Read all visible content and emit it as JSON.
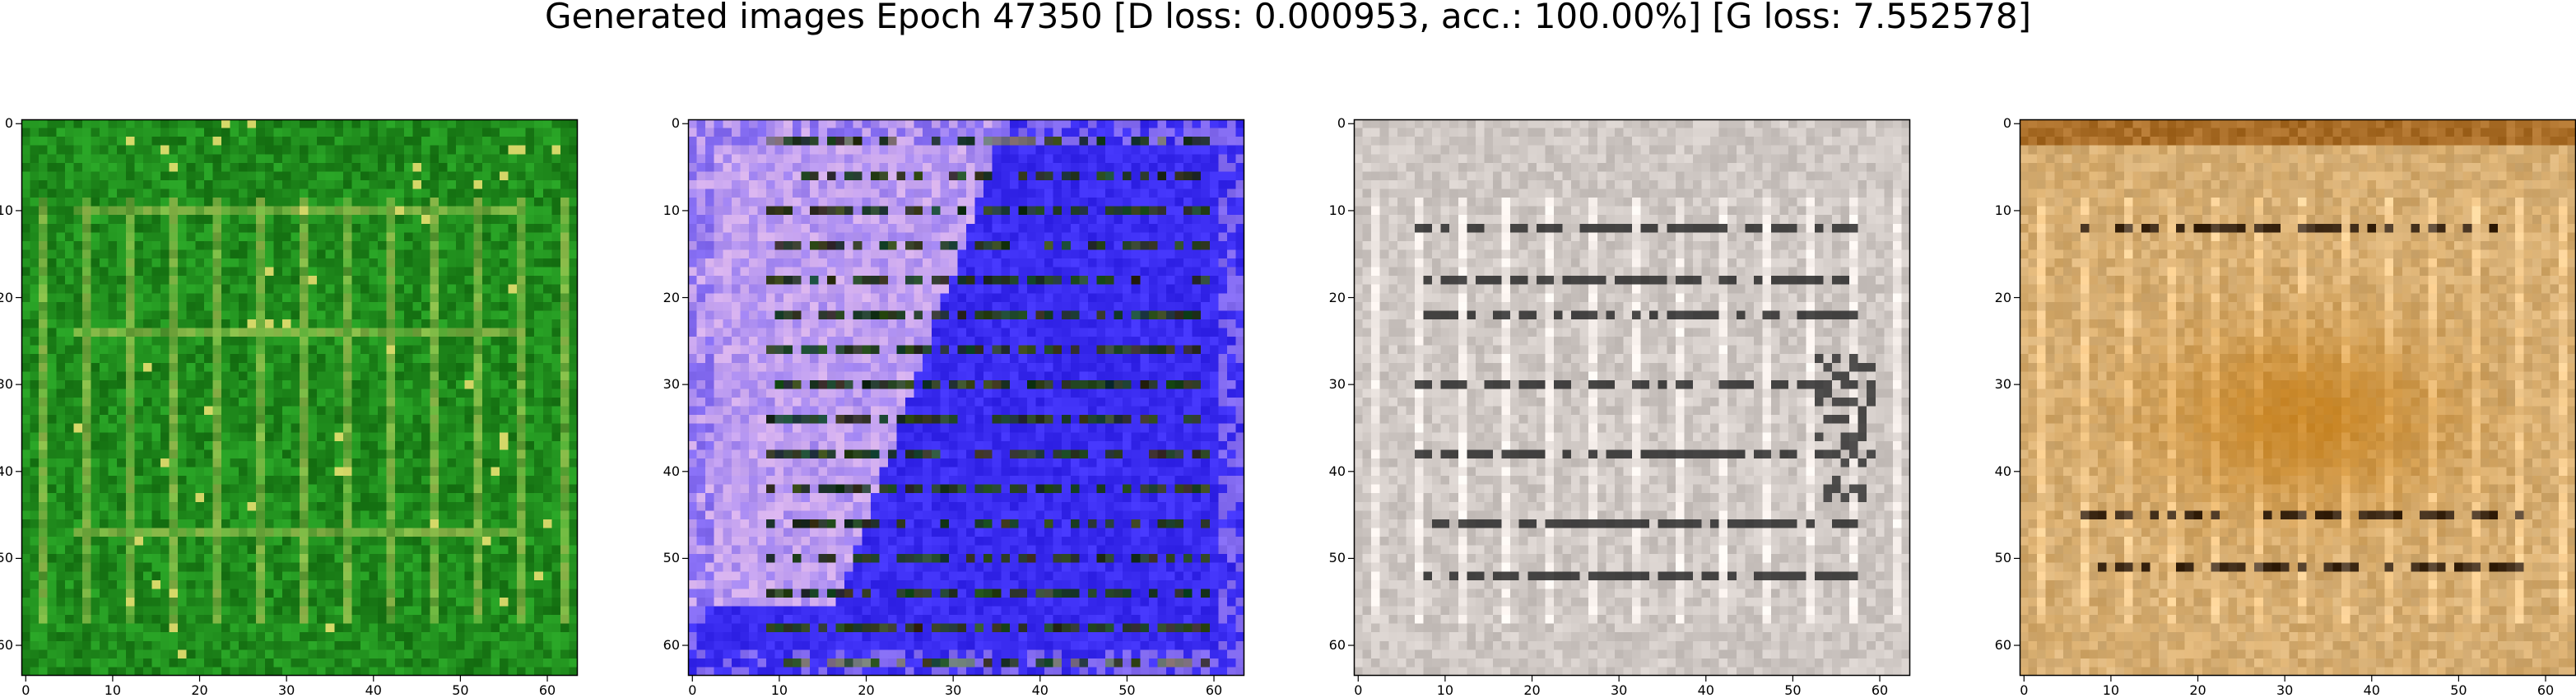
{
  "figure": {
    "title": "Generated images Epoch 47350 [D loss: 0.000953, acc.: 100.00%] [G loss: 7.552578]"
  },
  "axes": {
    "x_ticks": [
      "0",
      "10",
      "20",
      "30",
      "40",
      "50",
      "60"
    ],
    "y_ticks": [
      "0",
      "10",
      "20",
      "30",
      "40",
      "50",
      "60"
    ],
    "tick_values": [
      0,
      10,
      20,
      30,
      40,
      50,
      60
    ],
    "xlim": [
      -0.5,
      63.5
    ],
    "ylim": [
      63.5,
      -0.5
    ],
    "tick_color": "#000000"
  },
  "panels": [
    {
      "name": "generated-image-1",
      "dominant_color": "#1f8a1c",
      "accent_color": "#e8e070",
      "style": "green-grid"
    },
    {
      "name": "generated-image-2",
      "dominant_color": "#3a2cf0",
      "accent_color": "#f0c8f0",
      "style": "blue-pink"
    },
    {
      "name": "generated-image-3",
      "dominant_color": "#cfc8c4",
      "accent_color": "#2a2a2a",
      "style": "gray-lines"
    },
    {
      "name": "generated-image-4",
      "dominant_color": "#d8b27a",
      "accent_color": "#c47a10",
      "style": "tan-orange"
    }
  ]
}
